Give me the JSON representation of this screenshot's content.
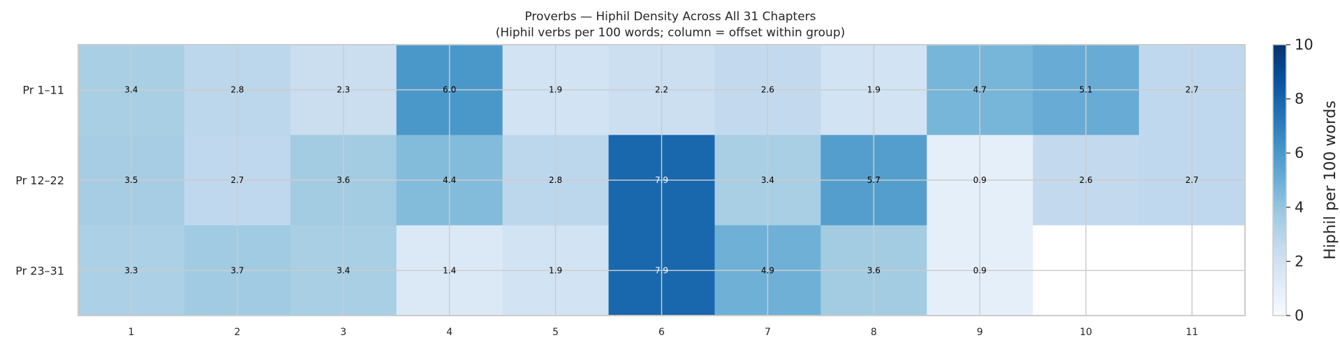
{
  "chart_data": {
    "type": "heatmap",
    "title": "Proverbs — Hiphil Density Across All 31 Chapters",
    "subtitle": "(Hiphil verbs per 100 words; column = offset within group)",
    "rows": [
      "Pr 1–11",
      "Pr 12–22",
      "Pr 23–31"
    ],
    "columns": [
      "1",
      "2",
      "3",
      "4",
      "5",
      "6",
      "7",
      "8",
      "9",
      "10",
      "11"
    ],
    "values": [
      [
        3.4,
        2.8,
        2.3,
        6.0,
        1.9,
        2.2,
        2.6,
        1.9,
        4.7,
        5.1,
        2.7
      ],
      [
        3.5,
        2.7,
        3.6,
        4.4,
        2.8,
        7.9,
        3.4,
        5.7,
        0.9,
        2.6,
        2.7
      ],
      [
        3.3,
        3.7,
        3.4,
        1.4,
        1.9,
        7.9,
        4.9,
        3.6,
        0.9,
        null,
        null
      ]
    ],
    "value_labels": [
      [
        "3.4",
        "2.8",
        "2.3",
        "6.0",
        "1.9",
        "2.2",
        "2.6",
        "1.9",
        "4.7",
        "5.1",
        "2.7"
      ],
      [
        "3.5",
        "2.7",
        "3.6",
        "4.4",
        "2.8",
        "7.9",
        "3.4",
        "5.7",
        "0.9",
        "2.6",
        "2.7"
      ],
      [
        "3.3",
        "3.7",
        "3.4",
        "1.4",
        "1.9",
        "7.9",
        "4.9",
        "3.6",
        "0.9",
        "",
        ""
      ]
    ],
    "colorbar": {
      "label": "Hiphil per 100 words",
      "range": [
        0,
        10
      ],
      "ticks": [
        "0",
        "2",
        "4",
        "6",
        "8",
        "10"
      ],
      "colormap": "Blues",
      "colors": [
        "#f7fbff",
        "#deebf7",
        "#c6dbef",
        "#9ecae1",
        "#6baed6",
        "#4292c6",
        "#2171b5",
        "#08519c",
        "#08306b"
      ]
    },
    "grid": true,
    "colors": {
      "text_dark": "#000000",
      "text_light": "#ffffff",
      "grid": "#cccccc",
      "missing": "#ffffff"
    }
  }
}
